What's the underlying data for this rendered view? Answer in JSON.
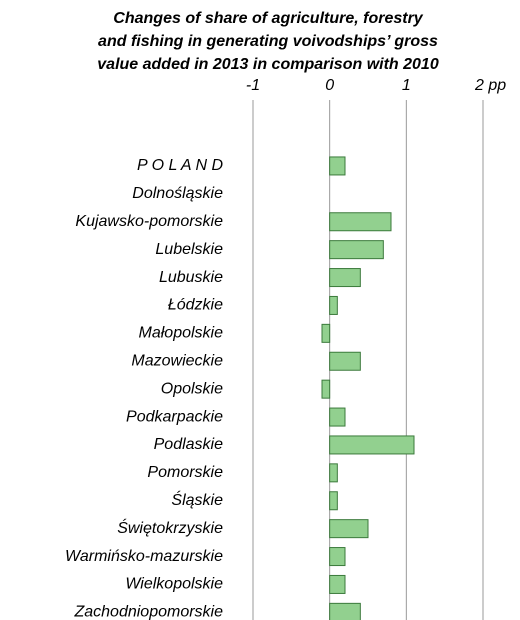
{
  "chart_data": {
    "type": "bar",
    "orientation": "horizontal",
    "title": [
      "Changes of share of agriculture, forestry",
      "and fishing in generating voivodships’ gross",
      "value added in 2013 in comparison with 2010"
    ],
    "categories": [
      "P O L A N D",
      "Dolnośląskie",
      "Kujawsko-pomorskie",
      "Lubelskie",
      "Lubuskie",
      "Łódzkie",
      "Małopolskie",
      "Mazowieckie",
      "Opolskie",
      "Podkarpackie",
      "Podlaskie",
      "Pomorskie",
      "Śląskie",
      "Świętokrzyskie",
      "Warmińsko-mazurskie",
      "Wielkopolskie",
      "Zachodniopomorskie"
    ],
    "values": [
      0.2,
      0,
      0.8,
      0.7,
      0.4,
      0.1,
      -0.1,
      0.4,
      -0.1,
      0.2,
      1.1,
      0.1,
      0.1,
      0.5,
      0.2,
      0.2,
      0.4
    ],
    "color": "#92d08f",
    "xlim": [
      -1,
      2
    ],
    "xticks": [
      -1,
      0,
      1,
      {
        "value": 2,
        "label": "2 pp"
      }
    ],
    "grid": true
  }
}
